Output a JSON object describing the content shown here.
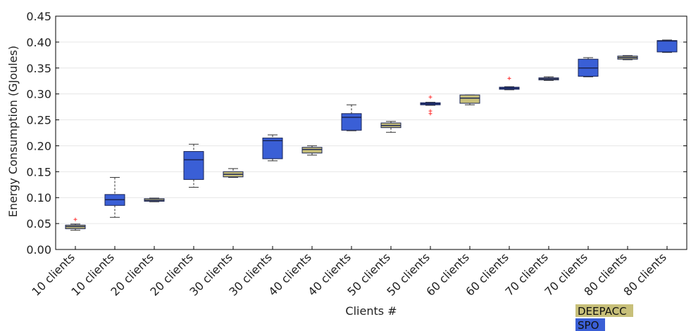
{
  "chart_data": {
    "type": "box",
    "xlabel": "Clients #",
    "ylabel": "Energy Consumption (GJoules)",
    "ylim": [
      0.0,
      0.45
    ],
    "y_ticks": [
      "0.00",
      "0.05",
      "0.10",
      "0.15",
      "0.20",
      "0.25",
      "0.30",
      "0.35",
      "0.40",
      "0.45"
    ],
    "grid": "horizontal, light",
    "legend": {
      "position": "bottom-right",
      "entries": [
        {
          "name": "DEEPACC",
          "color": "#c8c07a"
        },
        {
          "name": "SPO",
          "color": "#3a5fd6"
        }
      ]
    },
    "categories": [
      "10 clients",
      "10 clients",
      "20 clients",
      "20 clients",
      "30 clients",
      "30 clients",
      "40 clients",
      "40 clients",
      "50 clients",
      "50 clients",
      "60 clients",
      "60 clients",
      "70 clients",
      "70 clients",
      "80 clients",
      "80 clients"
    ],
    "boxes": [
      {
        "series": "DEEPACC",
        "whisker_low": 0.037,
        "q1": 0.04,
        "median": 0.044,
        "q3": 0.047,
        "whisker_high": 0.049,
        "outliers": [
          0.058
        ]
      },
      {
        "series": "SPO",
        "whisker_low": 0.062,
        "q1": 0.085,
        "median": 0.096,
        "q3": 0.106,
        "whisker_high": 0.139,
        "outliers": []
      },
      {
        "series": "DEEPACC",
        "whisker_low": 0.092,
        "q1": 0.093,
        "median": 0.095,
        "q3": 0.098,
        "whisker_high": 0.099,
        "outliers": []
      },
      {
        "series": "SPO",
        "whisker_low": 0.12,
        "q1": 0.135,
        "median": 0.173,
        "q3": 0.189,
        "whisker_high": 0.203,
        "outliers": []
      },
      {
        "series": "DEEPACC",
        "whisker_low": 0.139,
        "q1": 0.14,
        "median": 0.145,
        "q3": 0.15,
        "whisker_high": 0.156,
        "outliers": []
      },
      {
        "series": "SPO",
        "whisker_low": 0.171,
        "q1": 0.175,
        "median": 0.21,
        "q3": 0.215,
        "whisker_high": 0.221,
        "outliers": []
      },
      {
        "series": "DEEPACC",
        "whisker_low": 0.182,
        "q1": 0.186,
        "median": 0.193,
        "q3": 0.197,
        "whisker_high": 0.2,
        "outliers": []
      },
      {
        "series": "SPO",
        "whisker_low": 0.229,
        "q1": 0.23,
        "median": 0.255,
        "q3": 0.262,
        "whisker_high": 0.279,
        "outliers": []
      },
      {
        "series": "DEEPACC",
        "whisker_low": 0.226,
        "q1": 0.235,
        "median": 0.239,
        "q3": 0.244,
        "whisker_high": 0.247,
        "outliers": []
      },
      {
        "series": "SPO",
        "whisker_low": 0.278,
        "q1": 0.279,
        "median": 0.281,
        "q3": 0.283,
        "whisker_high": 0.284,
        "outliers": [
          0.262,
          0.267,
          0.294
        ]
      },
      {
        "series": "DEEPACC",
        "whisker_low": 0.279,
        "q1": 0.282,
        "median": 0.292,
        "q3": 0.298,
        "whisker_high": 0.298,
        "outliers": []
      },
      {
        "series": "SPO",
        "whisker_low": 0.308,
        "q1": 0.309,
        "median": 0.311,
        "q3": 0.313,
        "whisker_high": 0.314,
        "outliers": [
          0.33
        ]
      },
      {
        "series": "DEEPACC",
        "whisker_low": 0.326,
        "q1": 0.327,
        "median": 0.329,
        "q3": 0.331,
        "whisker_high": 0.333,
        "outliers": []
      },
      {
        "series": "SPO",
        "whisker_low": 0.333,
        "q1": 0.334,
        "median": 0.35,
        "q3": 0.367,
        "whisker_high": 0.37,
        "outliers": []
      },
      {
        "series": "DEEPACC",
        "whisker_low": 0.366,
        "q1": 0.367,
        "median": 0.37,
        "q3": 0.373,
        "whisker_high": 0.374,
        "outliers": []
      },
      {
        "series": "SPO",
        "whisker_low": 0.38,
        "q1": 0.381,
        "median": 0.402,
        "q3": 0.403,
        "whisker_high": 0.404,
        "outliers": []
      }
    ]
  }
}
